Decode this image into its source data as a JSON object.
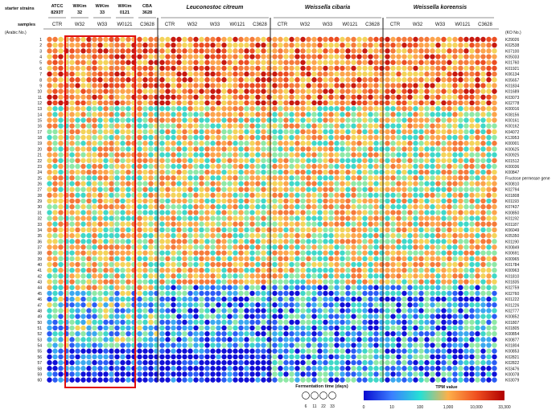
{
  "chart_data": {
    "type": "heatmap",
    "row_labels": {
      "starter_strains": "starter strains",
      "samples": "samples",
      "arabic_no": "(Arabic No.)",
      "ko_no": "(KO No.)"
    },
    "groups": [
      {
        "label": "ATCC 8293T",
        "columns": [
          "CTR"
        ]
      },
      {
        "label": "WiKim 32",
        "columns": [
          "W32"
        ]
      },
      {
        "label": "WiKim 33",
        "columns": [
          "W33"
        ]
      },
      {
        "label": "WiKim 0121",
        "columns": [
          "W0121"
        ]
      },
      {
        "label": "CBA 3628",
        "columns": [
          "C3628"
        ]
      },
      {
        "label": "Leuconostoc citreum",
        "columns": [
          "CTR",
          "W32",
          "W33",
          "W0121",
          "C3628"
        ]
      },
      {
        "label": "Weissella cibaria",
        "columns": [
          "CTR",
          "W32",
          "W33",
          "W0121",
          "C3628"
        ]
      },
      {
        "label": "Weissella koreensis",
        "columns": [
          "CTR",
          "W32",
          "W33",
          "W0121",
          "C3628"
        ]
      }
    ],
    "fermentation_days": [
      "6",
      "11",
      "22",
      "33"
    ],
    "rows": [
      {
        "no": "1",
        "ko": "K29026"
      },
      {
        "no": "2",
        "ko": "K02538"
      },
      {
        "no": "3",
        "ko": "K07100"
      },
      {
        "no": "4",
        "ko": "K05033"
      },
      {
        "no": "5",
        "ko": "K01760"
      },
      {
        "no": "6",
        "ko": "K01921"
      },
      {
        "no": "7",
        "ko": "K06134"
      },
      {
        "no": "8",
        "ko": "K05657"
      },
      {
        "no": "9",
        "ko": "K01834"
      },
      {
        "no": "10",
        "ko": "K01689"
      },
      {
        "no": "11",
        "ko": "K03073"
      },
      {
        "no": "12",
        "ko": "K02778"
      },
      {
        "no": "13",
        "ko": "K00016"
      },
      {
        "no": "14",
        "ko": "K08156"
      },
      {
        "no": "15",
        "ko": "K00161"
      },
      {
        "no": "16",
        "ko": "K00162"
      },
      {
        "no": "17",
        "ko": "K04072"
      },
      {
        "no": "18",
        "ko": "K13953"
      },
      {
        "no": "19",
        "ko": "K00001"
      },
      {
        "no": "20",
        "ko": "K00625"
      },
      {
        "no": "21",
        "ko": "K00925"
      },
      {
        "no": "22",
        "ko": "K01512"
      },
      {
        "no": "23",
        "ko": "K00036"
      },
      {
        "no": "24",
        "ko": "K00847"
      },
      {
        "no": "25",
        "ko": "Fructose permease gene"
      },
      {
        "no": "26",
        "ko": "K00810"
      },
      {
        "no": "27",
        "ko": "K02794"
      },
      {
        "no": "28",
        "ko": "K01808"
      },
      {
        "no": "29",
        "ko": "K01193"
      },
      {
        "no": "30",
        "ko": "K07437"
      },
      {
        "no": "31",
        "ko": "K00850"
      },
      {
        "no": "32",
        "ko": "K01192"
      },
      {
        "no": "33",
        "ko": "K01187"
      },
      {
        "no": "34",
        "ko": "K06049"
      },
      {
        "no": "35",
        "ko": "K05350"
      },
      {
        "no": "36",
        "ko": "K01190"
      },
      {
        "no": "37",
        "ko": "K00849"
      },
      {
        "no": "38",
        "ko": "K00691"
      },
      {
        "no": "39",
        "ko": "K00965"
      },
      {
        "no": "40",
        "ko": "K01784"
      },
      {
        "no": "41",
        "ko": "K00963"
      },
      {
        "no": "42",
        "ko": "K01810"
      },
      {
        "no": "43",
        "ko": "K01835"
      },
      {
        "no": "44",
        "ko": "K02759"
      },
      {
        "no": "45",
        "ko": "K02760"
      },
      {
        "no": "46",
        "ko": "K01222"
      },
      {
        "no": "47",
        "ko": "K01226"
      },
      {
        "no": "48",
        "ko": "K02777"
      },
      {
        "no": "49",
        "ko": "K00852"
      },
      {
        "no": "50",
        "ko": "K01807"
      },
      {
        "no": "51",
        "ko": "K01805"
      },
      {
        "no": "52",
        "ko": "K00854"
      },
      {
        "no": "53",
        "ko": "K00877"
      },
      {
        "no": "54",
        "ko": "K01804"
      },
      {
        "no": "55",
        "ko": "K00853"
      },
      {
        "no": "56",
        "ko": "K02821"
      },
      {
        "no": "57",
        "ko": "K02822"
      },
      {
        "no": "58",
        "ko": "K03476"
      },
      {
        "no": "59",
        "ko": "K00078"
      },
      {
        "no": "60",
        "ko": "K03079"
      }
    ],
    "colorbar": {
      "title": "TPM value",
      "ticks": [
        "0",
        "10",
        "100",
        "1,000",
        "10,000",
        "33,300"
      ],
      "colors": [
        "#0a0ad0",
        "#3b7fff",
        "#25e0d5",
        "#fdb04a",
        "#f05020",
        "#b00000"
      ]
    },
    "legend_title": "Fermentation time (days)",
    "highlight_color": "#e01010"
  }
}
